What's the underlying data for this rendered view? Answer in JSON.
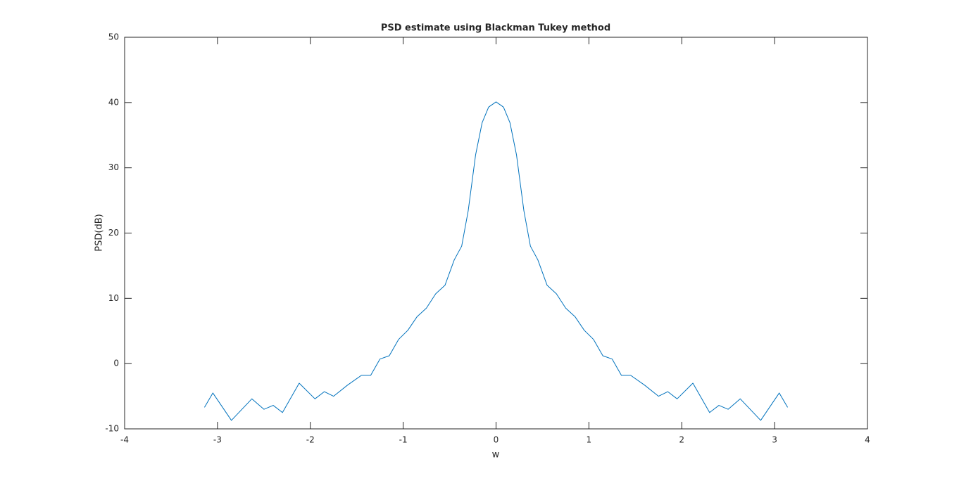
{
  "chart_data": {
    "type": "line",
    "title": "PSD estimate using Blackman Tukey method",
    "x_label": "w",
    "y_label": "PSD(dB)",
    "x": [
      -3.14,
      -3.05,
      -2.85,
      -2.63,
      -2.5,
      -2.4,
      -2.3,
      -2.12,
      -1.95,
      -1.85,
      -1.75,
      -1.6,
      -1.45,
      -1.35,
      -1.25,
      -1.15,
      -1.05,
      -0.95,
      -0.85,
      -0.75,
      -0.65,
      -0.55,
      -0.45,
      -0.37,
      -0.3,
      -0.22,
      -0.15,
      -0.08,
      0,
      0.08,
      0.15,
      0.22,
      0.3,
      0.37,
      0.45,
      0.55,
      0.65,
      0.75,
      0.85,
      0.95,
      1.05,
      1.15,
      1.25,
      1.35,
      1.45,
      1.6,
      1.75,
      1.85,
      1.95,
      2.12,
      2.3,
      2.4,
      2.5,
      2.63,
      2.85,
      3.05,
      3.14
    ],
    "series": [
      {
        "color": "#0072bd",
        "values": [
          -6.7,
          -4.5,
          -8.7,
          -5.4,
          -7.0,
          -6.4,
          -7.5,
          -3.0,
          -5.4,
          -4.3,
          -5.0,
          -3.3,
          -1.8,
          -1.8,
          0.7,
          1.2,
          3.7,
          5.1,
          7.2,
          8.5,
          10.7,
          12.0,
          15.9,
          18.0,
          23.4,
          32.0,
          36.9,
          39.3,
          40.1,
          39.3,
          36.9,
          32.0,
          23.4,
          18.0,
          15.9,
          12.0,
          10.7,
          8.5,
          7.2,
          5.1,
          3.7,
          1.2,
          0.7,
          -1.8,
          -1.8,
          -3.3,
          -5.0,
          -4.3,
          -5.4,
          -3.0,
          -7.5,
          -6.4,
          -7.0,
          -5.4,
          -8.7,
          -4.5,
          -6.7
        ]
      }
    ],
    "xlim": [
      -4,
      4
    ],
    "ylim": [
      -10,
      50
    ],
    "xticks": [
      -4,
      -3,
      -2,
      -1,
      0,
      1,
      2,
      3,
      4
    ],
    "yticks": [
      -10,
      0,
      10,
      20,
      30,
      40,
      50
    ]
  }
}
